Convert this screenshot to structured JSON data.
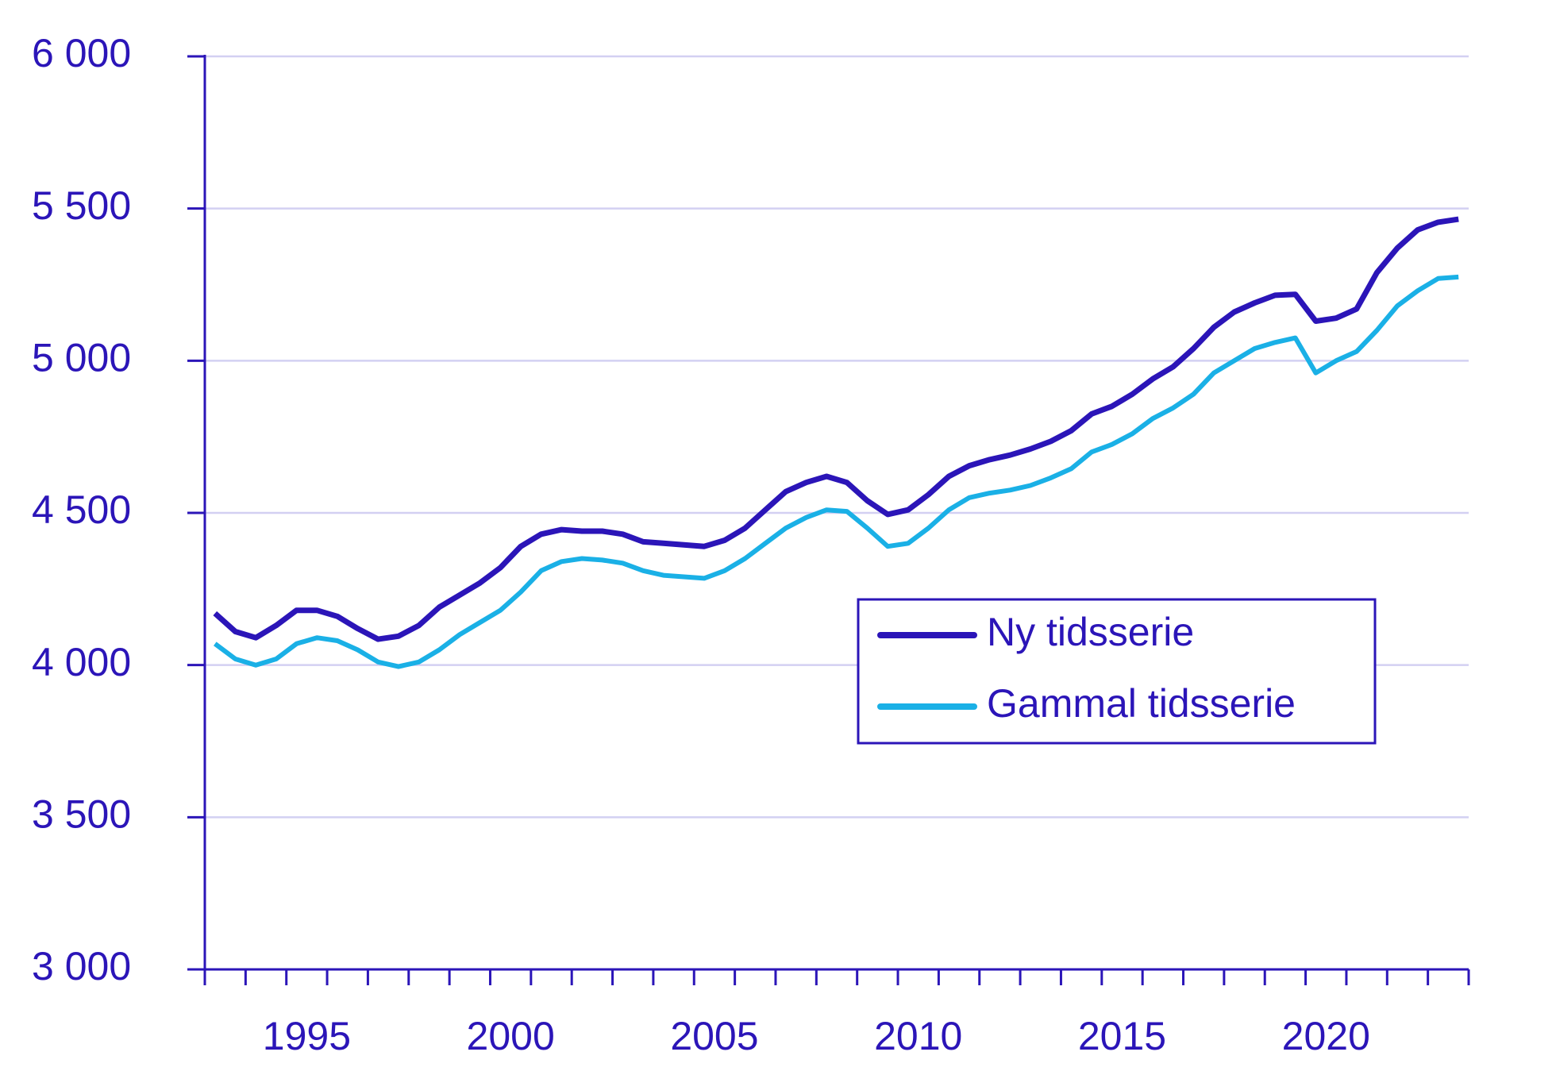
{
  "chart_data": {
    "type": "line",
    "x": [
      1993.25,
      1993.75,
      1994.25,
      1994.75,
      1995.25,
      1995.75,
      1996.25,
      1996.75,
      1997.25,
      1997.75,
      1998.25,
      1998.75,
      1999.25,
      1999.75,
      2000.25,
      2000.75,
      2001.25,
      2001.75,
      2002.25,
      2002.75,
      2003.25,
      2003.75,
      2004.25,
      2004.75,
      2005.25,
      2005.75,
      2006.25,
      2006.75,
      2007.25,
      2007.75,
      2008.25,
      2008.75,
      2009.25,
      2009.75,
      2010.25,
      2010.75,
      2011.25,
      2011.75,
      2012.25,
      2012.75,
      2013.25,
      2013.75,
      2014.25,
      2014.75,
      2015.25,
      2015.75,
      2016.25,
      2016.75,
      2017.25,
      2017.75,
      2018.25,
      2018.75,
      2019.25,
      2019.75,
      2020.25,
      2020.75,
      2021.25,
      2021.75,
      2022.25,
      2022.75,
      2023.25,
      2023.75
    ],
    "series": [
      {
        "name": "Ny tidsserie",
        "color": "#2b15b8",
        "values": [
          4170,
          4110,
          4090,
          4130,
          4180,
          4180,
          4160,
          4120,
          4085,
          4095,
          4130,
          4190,
          4230,
          4270,
          4320,
          4390,
          4430,
          4445,
          4440,
          4440,
          4430,
          4405,
          4400,
          4395,
          4390,
          4410,
          4450,
          4510,
          4570,
          4600,
          4620,
          4600,
          4540,
          4495,
          4510,
          4560,
          4620,
          4655,
          4675,
          4690,
          4710,
          4735,
          4770,
          4825,
          4850,
          4890,
          4940,
          4980,
          5040,
          5110,
          5160,
          5190,
          5215,
          5218,
          5130,
          5140,
          5170,
          5290,
          5370,
          5430,
          5455,
          5465
        ]
      },
      {
        "name": "Gammal tidsserie",
        "color": "#1ab0e6",
        "values": [
          4070,
          4020,
          4000,
          4020,
          4070,
          4090,
          4080,
          4050,
          4010,
          3995,
          4010,
          4050,
          4100,
          4140,
          4180,
          4240,
          4310,
          4340,
          4350,
          4345,
          4335,
          4310,
          4295,
          4290,
          4285,
          4310,
          4350,
          4400,
          4450,
          4485,
          4510,
          4505,
          4450,
          4390,
          4400,
          4450,
          4510,
          4550,
          4565,
          4575,
          4590,
          4615,
          4645,
          4700,
          4725,
          4760,
          4810,
          4845,
          4890,
          4960,
          5000,
          5040,
          5060,
          5075,
          4960,
          5000,
          5030,
          5100,
          5180,
          5230,
          5270,
          5275
        ]
      }
    ],
    "xlim": [
      1993,
      2024
    ],
    "xticks": [
      1993,
      1994,
      1995,
      1996,
      1997,
      1998,
      1999,
      2000,
      2001,
      2002,
      2003,
      2004,
      2005,
      2006,
      2007,
      2008,
      2009,
      2010,
      2011,
      2012,
      2013,
      2014,
      2015,
      2016,
      2017,
      2018,
      2019,
      2020,
      2021,
      2022,
      2023,
      2024
    ],
    "xlabels": [
      {
        "value": 1995.5,
        "label": "1995"
      },
      {
        "value": 2000.5,
        "label": "2000"
      },
      {
        "value": 2005.5,
        "label": "2005"
      },
      {
        "value": 2010.5,
        "label": "2010"
      },
      {
        "value": 2015.5,
        "label": "2015"
      },
      {
        "value": 2020.5,
        "label": "2020"
      }
    ],
    "ylim": [
      3000,
      6000
    ],
    "yticks": [
      {
        "value": 3000,
        "label": "3 000"
      },
      {
        "value": 3500,
        "label": "3 500"
      },
      {
        "value": 4000,
        "label": "4 000"
      },
      {
        "value": 4500,
        "label": "4 500"
      },
      {
        "value": 5000,
        "label": "5 000"
      },
      {
        "value": 5500,
        "label": "5 500"
      },
      {
        "value": 6000,
        "label": "6 000"
      }
    ],
    "grid": true,
    "legend": "center-right"
  }
}
